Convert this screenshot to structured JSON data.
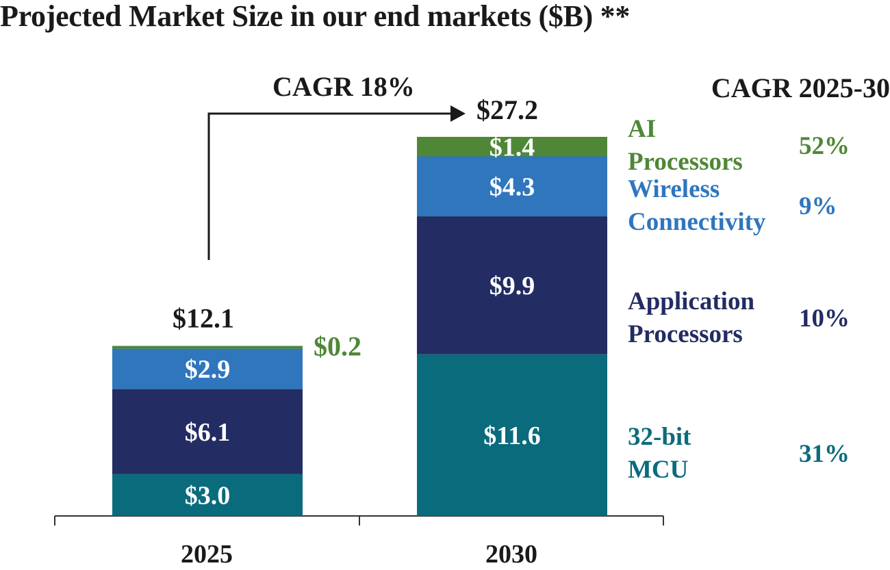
{
  "chart_data": {
    "type": "bar",
    "stacked": true,
    "title": "Projected Market Size in our end markets ($B) **",
    "categories": [
      "2025",
      "2030"
    ],
    "totals": [
      "$12.1",
      "$27.2"
    ],
    "series": [
      {
        "name": "32-bit MCU",
        "values": [
          3.0,
          11.6
        ],
        "labels": [
          "$3.0",
          "$11.6"
        ],
        "cagr": "31%",
        "color": "#0a6b7d"
      },
      {
        "name": "Application Processors",
        "values": [
          6.1,
          9.9
        ],
        "labels": [
          "$6.1",
          "$9.9"
        ],
        "cagr": "10%",
        "color": "#232c63"
      },
      {
        "name": "Wireless Connectivity",
        "values": [
          2.9,
          4.3
        ],
        "labels": [
          "$2.9",
          "$4.3"
        ],
        "cagr": "9%",
        "color": "#2f76bd"
      },
      {
        "name": "AI Processors",
        "values": [
          0.2,
          1.4
        ],
        "labels": [
          "$0.2",
          "$1.4"
        ],
        "cagr": "52%",
        "color": "#4f8737"
      }
    ],
    "legend_lines": [
      [
        "32-bit",
        "MCU"
      ],
      [
        "Application",
        "Processors"
      ],
      [
        "Wireless",
        "Connectivity"
      ],
      [
        "AI",
        "Processors"
      ]
    ],
    "cagr_header": "CAGR 2025-30",
    "growth_annotation": "CAGR 18%",
    "ylim": [
      0,
      27.2
    ],
    "grid": false,
    "legend_position": "right"
  }
}
